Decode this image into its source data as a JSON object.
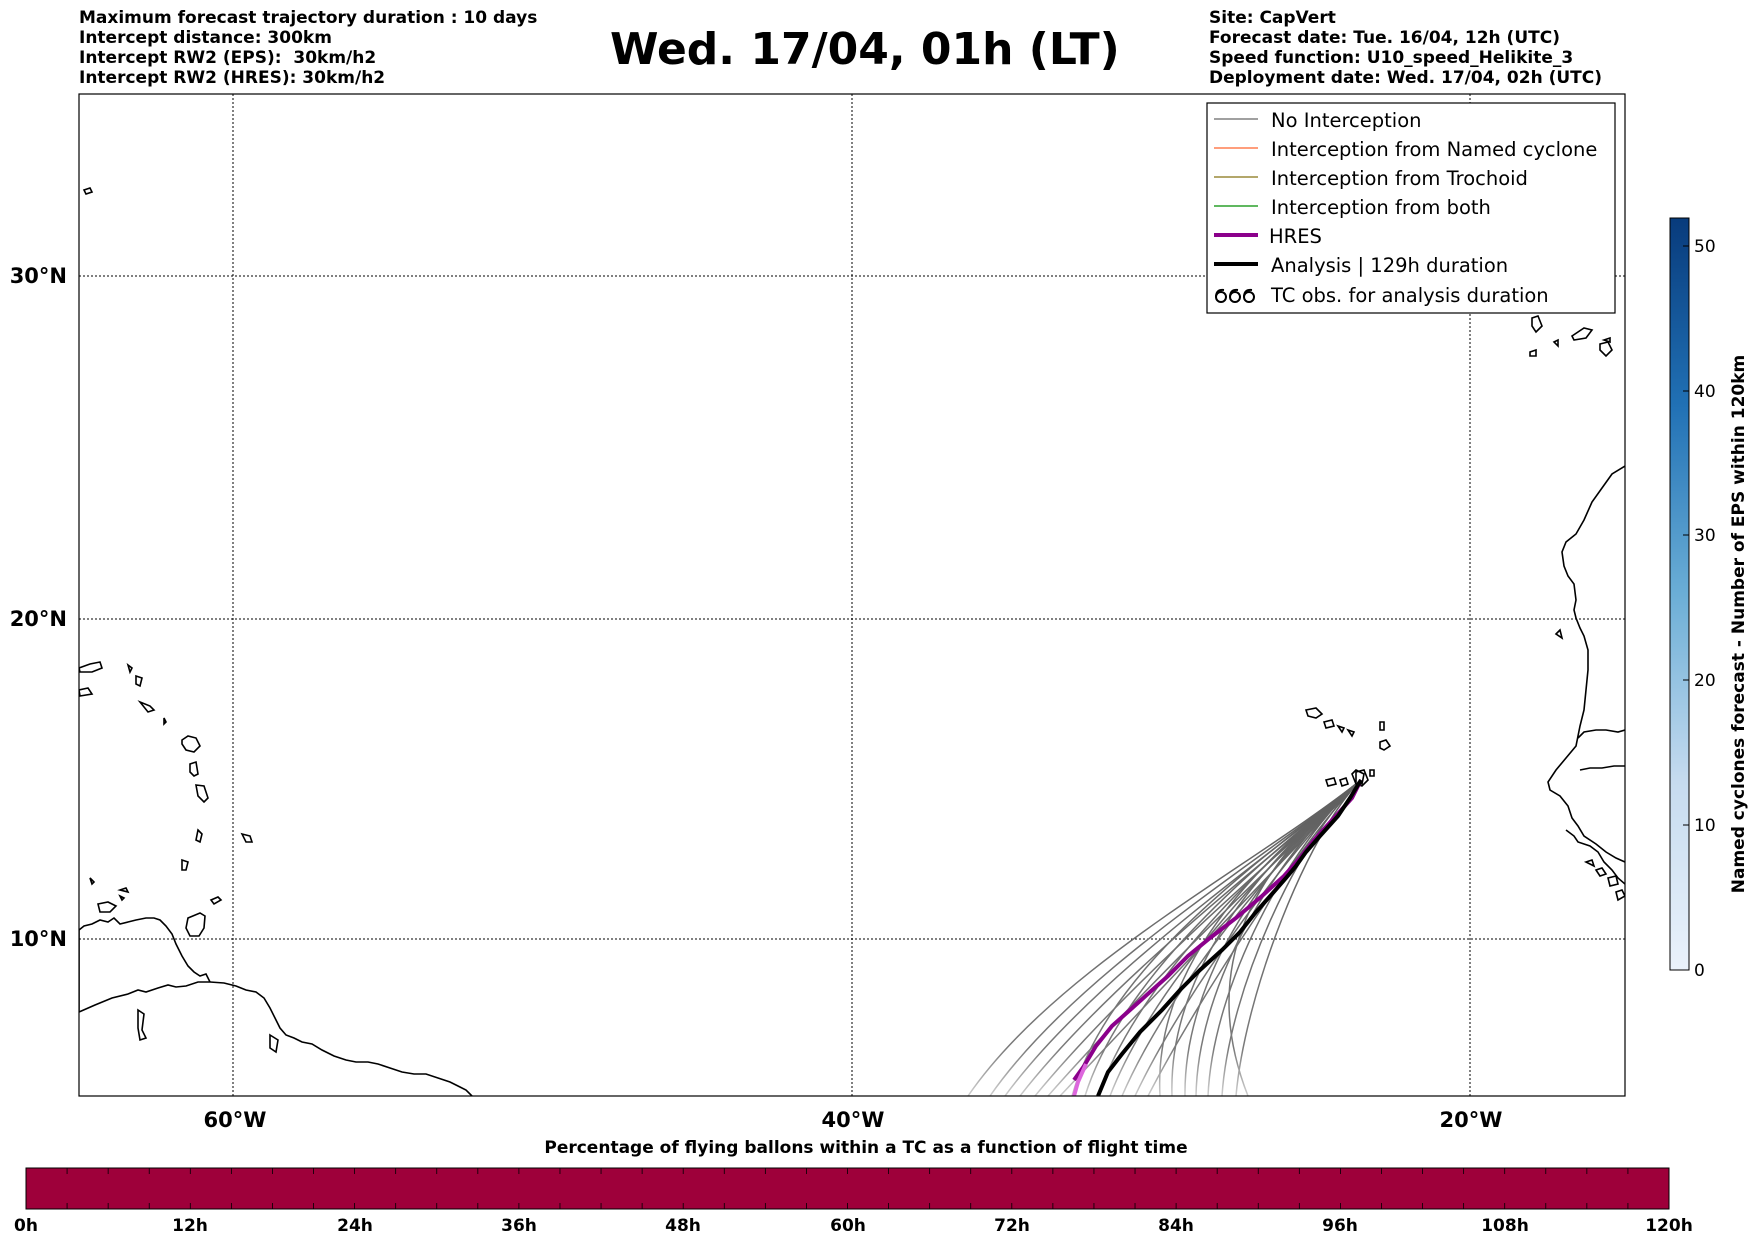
{
  "header": {
    "left_lines": [
      "Maximum forecast trajectory duration : 10 days",
      "Intercept distance: 300km",
      "Intercept RW2 (EPS):  30km/h2",
      "Intercept RW2 (HRES): 30km/h2"
    ],
    "title": "Wed. 17/04, 01h (LT)",
    "right_lines": [
      "Site: CapVert",
      "Forecast date: Tue. 16/04, 12h (UTC)",
      "Speed function: U10_speed_Helikite_3",
      "Deployment date: Wed. 17/04, 02h (UTC)"
    ]
  },
  "map": {
    "lat_labels": [
      "30°N",
      "20°N",
      "10°N"
    ],
    "lon_labels": [
      "60°W",
      "40°W",
      "20°W"
    ]
  },
  "legend": {
    "items": [
      {
        "label": "No Interception",
        "color": "#808080",
        "style": "thin"
      },
      {
        "label": "Interception from Named cyclone",
        "color": "#ff7f50",
        "style": "thin"
      },
      {
        "label": "Interception from Trochoid",
        "color": "#9a8a3a",
        "style": "thin"
      },
      {
        "label": "Interception from both",
        "color": "#2ca02c",
        "style": "thin"
      },
      {
        "label": "HRES",
        "color": "#8b008b",
        "style": "thick"
      },
      {
        "label": "Analysis | 129h duration",
        "color": "#000000",
        "style": "thick"
      },
      {
        "label": "TC obs. for analysis duration",
        "color": "#000000",
        "style": "symbol"
      }
    ]
  },
  "colorbar_right": {
    "label": "Named cyclones forecast - Number of EPS within 120km",
    "ticks": [
      "0",
      "10",
      "20",
      "30",
      "40",
      "50"
    ],
    "color_low": "#eaf2fb",
    "color_high": "#083b7c"
  },
  "colorbar_bottom": {
    "title": "Percentage of flying ballons within a TC as a function of flight time",
    "ticks": [
      "0h",
      "12h",
      "24h",
      "36h",
      "48h",
      "60h",
      "72h",
      "84h",
      "96h",
      "108h",
      "120h"
    ],
    "color": "#9e003a"
  }
}
